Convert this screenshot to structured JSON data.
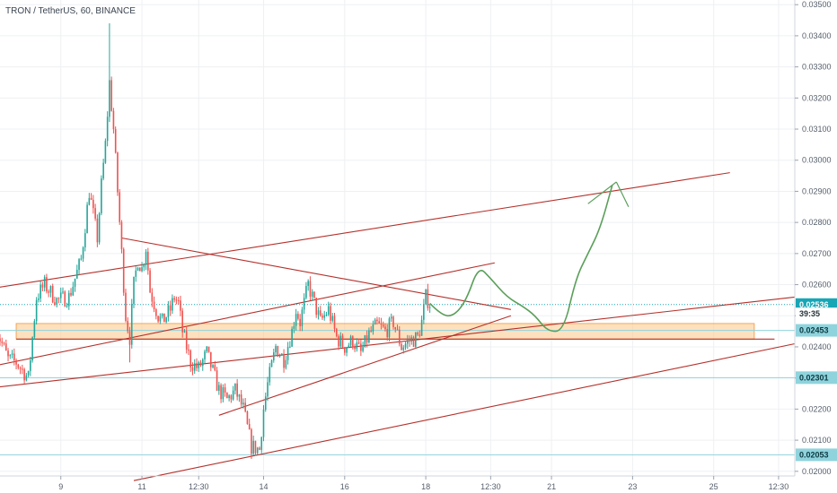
{
  "header": {
    "title": "TRON / TetherUS, 60, BINANCE"
  },
  "chart_data": {
    "type": "candlestick",
    "title": "TRON / TetherUS, 60, BINANCE",
    "symbol": "TRON / TetherUS",
    "interval": "60",
    "exchange": "BINANCE",
    "xlabel": "",
    "ylabel": "",
    "y_axis_position": "right",
    "grid": true,
    "ylim": [
      0.01985,
      0.03515
    ],
    "y_ticks": [
      0.035,
      0.034,
      0.033,
      0.032,
      0.031,
      0.03,
      0.029,
      0.028,
      0.027,
      0.026,
      0.025,
      0.024,
      0.023,
      0.022,
      0.021,
      0.02
    ],
    "y_tick_labels": [
      "0.03500",
      "0.03400",
      "0.03300",
      "0.03200",
      "0.03100",
      "0.03000",
      "0.02900",
      "0.02800",
      "0.02700",
      "0.02600",
      "0.02500",
      "0.02400",
      "0.02300",
      "0.02200",
      "0.02100",
      "0.02000"
    ],
    "x_ticks": [
      {
        "label": "9",
        "t": 16
      },
      {
        "label": "11",
        "t": 36
      },
      {
        "label": "12:30",
        "t": 50
      },
      {
        "label": "14",
        "t": 66
      },
      {
        "label": "16",
        "t": 86
      },
      {
        "label": "18",
        "t": 106
      },
      {
        "label": "12:30",
        "t": 122
      },
      {
        "label": "21",
        "t": 137
      },
      {
        "label": "23",
        "t": 157
      },
      {
        "label": "25",
        "t": 177
      },
      {
        "label": "12:30",
        "t": 193
      }
    ],
    "xlim": [
      1,
      197
    ],
    "price_anchors": [
      [
        0,
        0.0246
      ],
      [
        3,
        0.0236
      ],
      [
        5,
        0.0235
      ],
      [
        8,
        0.023
      ],
      [
        10,
        0.0256
      ],
      [
        12,
        0.026
      ],
      [
        15,
        0.0255
      ],
      [
        18,
        0.0256
      ],
      [
        21,
        0.0268
      ],
      [
        23,
        0.029
      ],
      [
        25,
        0.0275
      ],
      [
        26,
        0.0292
      ],
      [
        27,
        0.0305
      ],
      [
        28,
        0.0325
      ],
      [
        29,
        0.031
      ],
      [
        30,
        0.029
      ],
      [
        31,
        0.027
      ],
      [
        32,
        0.025
      ],
      [
        33,
        0.0243
      ],
      [
        34,
        0.026
      ],
      [
        35,
        0.0268
      ],
      [
        36,
        0.0265
      ],
      [
        37,
        0.0272
      ],
      [
        38,
        0.0258
      ],
      [
        40,
        0.025
      ],
      [
        41,
        0.0248
      ],
      [
        43,
        0.0252
      ],
      [
        44,
        0.0256
      ],
      [
        45,
        0.0254
      ],
      [
        46,
        0.0245
      ],
      [
        48,
        0.0235
      ],
      [
        50,
        0.0233
      ],
      [
        52,
        0.0238
      ],
      [
        55,
        0.0226
      ],
      [
        57,
        0.0223
      ],
      [
        59,
        0.0226
      ],
      [
        61,
        0.022
      ],
      [
        63,
        0.0208
      ],
      [
        65,
        0.0207
      ],
      [
        66,
        0.022
      ],
      [
        67,
        0.0228
      ],
      [
        69,
        0.024
      ],
      [
        71,
        0.0236
      ],
      [
        73,
        0.0245
      ],
      [
        74,
        0.0252
      ],
      [
        75,
        0.0248
      ],
      [
        76,
        0.0254
      ],
      [
        77,
        0.026
      ],
      [
        78,
        0.0256
      ],
      [
        80,
        0.0248
      ],
      [
        82,
        0.0252
      ],
      [
        84,
        0.0243
      ],
      [
        86,
        0.024
      ],
      [
        88,
        0.0242
      ],
      [
        90,
        0.0238
      ],
      [
        92,
        0.0244
      ],
      [
        94,
        0.0247
      ],
      [
        96,
        0.0245
      ],
      [
        98,
        0.0248
      ],
      [
        100,
        0.024
      ],
      [
        102,
        0.0242
      ],
      [
        104,
        0.0243
      ],
      [
        105,
        0.0248
      ],
      [
        106,
        0.0256
      ],
      [
        107,
        0.0254
      ]
    ],
    "spikes": [
      {
        "t": 28,
        "high": 0.0344
      },
      {
        "t": 33,
        "low": 0.0235
      },
      {
        "t": 64,
        "low": 0.0205
      }
    ],
    "horizontal_levels": [
      {
        "label": "0.02536",
        "price": 0.02536,
        "style": "dotted",
        "color": "#17a6b5"
      },
      {
        "label": "0.02453",
        "price": 0.02453,
        "style": "solid",
        "color": "#8fd3dd"
      },
      {
        "label": "0.02301",
        "price": 0.02301,
        "style": "solid",
        "color": "#8fd3dd"
      },
      {
        "label": "0.02053",
        "price": 0.02053,
        "style": "solid",
        "color": "#8fd3dd"
      }
    ],
    "countdown": {
      "label": "39:35",
      "price": 0.02506
    },
    "zone": {
      "from_t": 5,
      "to_t": 187,
      "low": 0.02425,
      "high": 0.02475,
      "color": "#fbc98a"
    },
    "support_line": {
      "price": 0.02425,
      "from_t": 5,
      "to_t": 192,
      "color": "#b5302a"
    },
    "trend_lines": [
      {
        "from": [
          0,
          0.0259
        ],
        "to": [
          181,
          0.0296
        ]
      },
      {
        "from": [
          0,
          0.0234
        ],
        "to": [
          123,
          0.0267
        ]
      },
      {
        "from": [
          31,
          0.0275
        ],
        "to": [
          127,
          0.0252
        ]
      },
      {
        "from": [
          55,
          0.0218
        ],
        "to": [
          127,
          0.025
        ]
      },
      {
        "from": [
          0,
          0.0227
        ],
        "to": [
          197,
          0.0256
        ]
      },
      {
        "from": [
          34,
          0.0197
        ],
        "to": [
          197,
          0.0241
        ]
      }
    ],
    "projection_path": [
      [
        107,
        0.0254
      ],
      [
        110,
        0.025
      ],
      [
        113,
        0.025
      ],
      [
        116,
        0.0255
      ],
      [
        119,
        0.0266
      ],
      [
        122,
        0.0262
      ],
      [
        126,
        0.0256
      ],
      [
        130,
        0.0253
      ],
      [
        133,
        0.025
      ],
      [
        136,
        0.0245
      ],
      [
        140,
        0.0245
      ],
      [
        143,
        0.0262
      ],
      [
        146,
        0.027
      ],
      [
        149,
        0.0278
      ],
      [
        152,
        0.0292
      ]
    ],
    "projection_arrow": {
      "tip": [
        153,
        0.0293
      ],
      "left": [
        146,
        0.0286
      ],
      "right": [
        156,
        0.0285
      ]
    },
    "colors": {
      "up": "#26a69a",
      "down": "#ef5350",
      "trend": "#b5302a",
      "projection": "#5a9f5a",
      "badge_dark": "#17a6b5",
      "badge_light": "#8fd3dd"
    }
  }
}
